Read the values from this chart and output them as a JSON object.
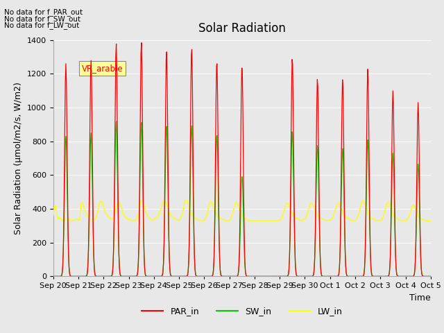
{
  "title": "Solar Radiation",
  "ylabel": "Solar Radiation (μmol/m2/s, W/m2)",
  "xlabel": "Time",
  "ylim": [
    0,
    1400
  ],
  "yticks": [
    0,
    200,
    400,
    600,
    800,
    1000,
    1200,
    1400
  ],
  "xtick_labels": [
    "Sep 20",
    "Sep 21",
    "Sep 22",
    "Sep 23",
    "Sep 24",
    "Sep 25",
    "Sep 26",
    "Sep 27",
    "Sep 28",
    "Sep 29",
    "Sep 30",
    "Oct 1",
    "Oct 2",
    "Oct 3",
    "Oct 4",
    "Oct 5"
  ],
  "no_data_texts": [
    "No data for f_PAR_out",
    "No data for f_SW_out",
    "No data for f_LW_out"
  ],
  "vr_arable_label": "VR_arable",
  "legend_entries": [
    "PAR_in",
    "SW_in",
    "LW_in"
  ],
  "legend_colors": [
    "#ff0000",
    "#00cc00",
    "#ffff00"
  ],
  "par_color": "#ff0000",
  "sw_color": "#00cc00",
  "lw_color": "#ffff00",
  "background_color": "#e8e8e8",
  "plot_bg_color": "#e8e8e8",
  "grid_color": "#ffffff",
  "title_fontsize": 12,
  "label_fontsize": 9,
  "tick_fontsize": 8,
  "num_days": 15,
  "par_peaks": [
    1260,
    1280,
    1380,
    1390,
    1340,
    1360,
    1280,
    1260,
    0,
    1300,
    1175,
    1170,
    1230,
    1100,
    1030
  ],
  "sw_peaks": [
    830,
    850,
    920,
    915,
    895,
    900,
    845,
    600,
    0,
    865,
    780,
    760,
    810,
    730,
    665
  ],
  "lw_data": [
    360,
    415,
    420,
    350,
    340,
    350,
    340,
    330,
    340,
    340,
    340,
    330,
    340,
    340,
    330,
    330,
    330,
    340,
    340,
    340,
    330,
    340,
    430,
    440,
    420,
    390,
    380,
    360,
    350,
    340,
    340,
    340,
    335,
    335,
    350,
    380,
    420,
    445,
    445,
    430,
    410,
    380,
    370,
    360,
    350,
    345,
    340,
    340,
    350,
    380,
    410,
    430,
    440,
    430,
    410,
    380,
    360,
    350,
    345,
    340,
    335,
    335,
    335,
    330,
    330,
    330,
    340,
    355,
    390,
    440,
    450,
    445,
    420,
    390,
    365,
    355,
    345,
    340,
    335,
    330,
    340,
    345,
    350,
    355,
    370,
    395,
    420,
    440,
    450,
    440,
    420,
    395,
    375,
    365,
    355,
    350,
    345,
    340,
    335,
    330,
    335,
    345,
    365,
    395,
    440,
    455,
    450,
    425,
    395,
    375,
    360,
    350,
    345,
    340,
    340,
    335,
    330,
    330,
    330,
    330,
    335,
    350,
    375,
    410,
    440,
    445,
    430,
    410,
    385,
    370,
    355,
    350,
    345,
    340,
    340,
    335,
    330,
    330,
    330,
    330,
    335,
    350,
    370,
    400,
    430,
    440,
    430,
    405,
    385,
    365,
    355,
    345,
    340,
    340,
    335,
    330,
    330,
    330,
    330,
    330,
    330,
    330,
    330,
    330,
    330,
    330,
    330,
    330,
    330,
    330,
    330,
    330,
    330,
    330,
    330,
    330,
    330,
    330,
    330,
    330,
    335,
    345,
    365,
    390,
    420,
    435,
    430,
    415,
    395,
    375,
    365,
    355,
    345,
    345,
    340,
    335,
    330,
    330,
    335,
    340,
    350,
    365,
    390,
    415,
    435,
    430,
    420,
    400,
    380,
    365,
    355,
    348,
    345,
    342,
    338,
    335,
    332,
    330,
    330,
    330,
    335,
    345,
    360,
    385,
    410,
    430,
    435,
    425,
    405,
    385,
    368,
    358,
    350,
    345,
    340,
    337,
    332,
    330,
    330,
    330,
    335,
    350,
    370,
    400,
    435,
    450,
    445,
    425,
    400,
    378,
    362,
    352,
    346,
    342,
    338,
    334,
    330,
    330,
    330,
    330,
    335,
    348,
    368,
    395,
    425,
    440,
    435,
    415,
    390,
    370,
    356,
    348,
    342,
    338,
    335,
    332,
    330,
    330,
    330,
    330,
    332,
    342,
    358,
    382,
    410,
    425,
    420,
    400,
    378,
    360,
    348,
    342,
    338,
    335,
    332,
    330,
    328,
    328,
    328,
    328
  ]
}
